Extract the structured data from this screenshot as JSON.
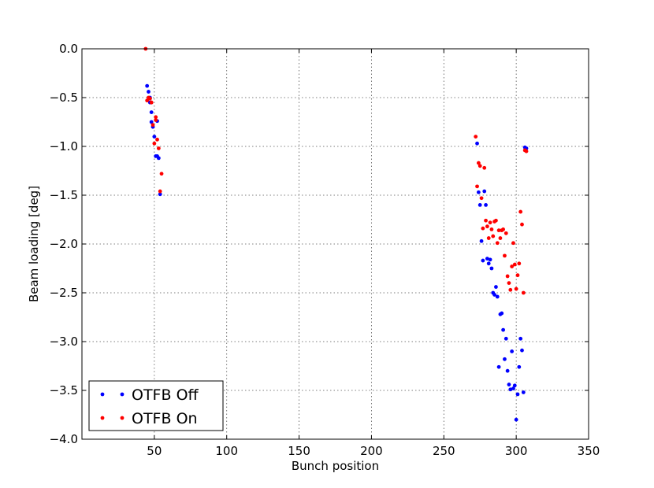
{
  "chart_data": {
    "type": "scatter",
    "xlabel": "Bunch position",
    "ylabel": "Beam loading [deg]",
    "xlim": [
      0,
      350
    ],
    "ylim": [
      -4.0,
      0.0
    ],
    "xticks": [
      50,
      100,
      150,
      200,
      250,
      300,
      350
    ],
    "yticks": [
      0.0,
      -0.5,
      -1.0,
      -1.5,
      -2.0,
      -2.5,
      -3.0,
      -3.5,
      -4.0
    ],
    "xtick_labels": [
      "50",
      "100",
      "150",
      "200",
      "250",
      "300",
      "350"
    ],
    "ytick_labels": [
      "0.0",
      "−0.5",
      "−1.0",
      "−1.5",
      "−2.0",
      "−2.5",
      "−3.0",
      "−3.5",
      "−4.0"
    ],
    "grid": true,
    "legend_position": "lower-left",
    "series": [
      {
        "name": "OTFB Off",
        "color": "#0000ff",
        "x": [
          45,
          46,
          47,
          48,
          49,
          50,
          51,
          52,
          53,
          54,
          47,
          48,
          52,
          273,
          274,
          275,
          276,
          277,
          278,
          279,
          280,
          281,
          282,
          283,
          284,
          285,
          286,
          287,
          288,
          289,
          290,
          291,
          292,
          293,
          294,
          295,
          296,
          297,
          298,
          299,
          300,
          301,
          302,
          303,
          304,
          305,
          306,
          307
        ],
        "y": [
          -0.38,
          -0.44,
          -0.5,
          -0.65,
          -0.8,
          -0.9,
          -1.1,
          -1.1,
          -1.12,
          -1.49,
          -0.55,
          -0.75,
          -0.74,
          -0.97,
          -1.47,
          -1.6,
          -1.97,
          -2.17,
          -1.46,
          -1.6,
          -2.15,
          -2.2,
          -2.16,
          -2.25,
          -2.5,
          -2.52,
          -2.44,
          -2.54,
          -3.26,
          -2.72,
          -2.71,
          -2.88,
          -3.18,
          -2.97,
          -3.3,
          -3.44,
          -3.49,
          -3.1,
          -3.48,
          -3.45,
          -3.8,
          -3.54,
          -3.26,
          -2.97,
          -3.09,
          -3.52,
          -1.01,
          -1.02
        ]
      },
      {
        "name": "OTFB On",
        "color": "#ff0000",
        "x": [
          44,
          45,
          46,
          47,
          48,
          49,
          50,
          51,
          52,
          53,
          54,
          55,
          47,
          48,
          51,
          272,
          273,
          274,
          275,
          276,
          277,
          278,
          279,
          280,
          281,
          282,
          283,
          284,
          285,
          286,
          287,
          288,
          289,
          290,
          291,
          292,
          293,
          294,
          295,
          296,
          297,
          298,
          299,
          300,
          301,
          302,
          303,
          304,
          305,
          306,
          307
        ],
        "y": [
          0.0,
          -0.53,
          -0.5,
          -0.51,
          -0.55,
          -0.78,
          -0.97,
          -0.7,
          -0.93,
          -1.02,
          -1.46,
          -1.28,
          -0.51,
          -0.55,
          -0.73,
          -0.9,
          -1.41,
          -1.17,
          -1.2,
          -1.53,
          -1.84,
          -1.22,
          -1.76,
          -1.82,
          -1.94,
          -1.78,
          -1.85,
          -1.92,
          -1.77,
          -1.76,
          -1.99,
          -1.86,
          -1.94,
          -1.86,
          -1.85,
          -2.12,
          -1.89,
          -2.33,
          -2.4,
          -2.47,
          -2.23,
          -1.99,
          -2.21,
          -2.46,
          -2.32,
          -2.2,
          -1.67,
          -1.8,
          -2.5,
          -1.04,
          -1.05
        ]
      }
    ]
  }
}
